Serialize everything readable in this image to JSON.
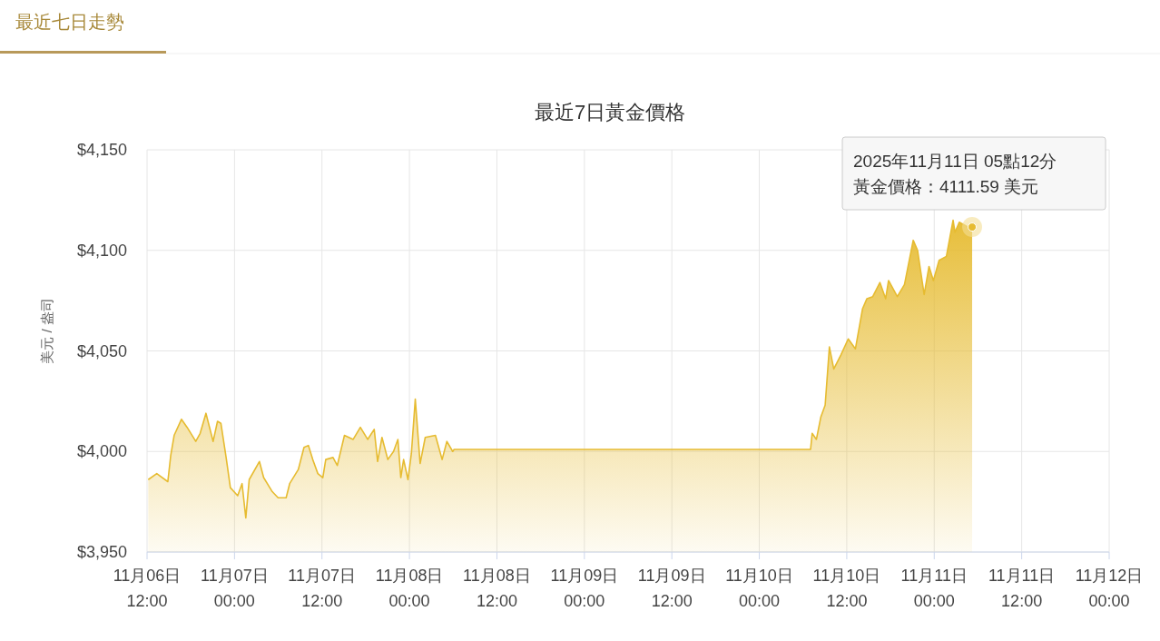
{
  "chart_data": {
    "type": "area",
    "title": "最近7日黃金價格",
    "ylabel": "美元 / 盎司",
    "annotations": [
      "最近七日走勢",
      "2025年11月11日 05點12分",
      "黃金價格：4111.59 美元"
    ],
    "x": [
      "2025-11-06T12:10",
      "2025-11-06T13:20",
      "2025-11-06T14:51",
      "2025-11-06T15:15",
      "2025-11-06T15:43",
      "2025-11-06T16:43",
      "2025-11-06T17:30",
      "2025-11-06T18:41",
      "2025-11-06T19:17",
      "2025-11-06T20:05",
      "2025-11-06T21:04",
      "2025-11-06T21:40",
      "2025-11-06T22:08",
      "2025-11-06T22:51",
      "2025-11-06T23:26",
      "2025-11-07T00:26",
      "2025-11-07T01:02",
      "2025-11-07T01:33",
      "2025-11-07T02:01",
      "2025-11-07T03:25",
      "2025-11-07T04:00",
      "2025-11-07T05:11",
      "2025-11-07T05:59",
      "2025-11-07T07:05",
      "2025-11-07T07:34",
      "2025-11-07T08:45",
      "2025-11-07T09:32",
      "2025-11-07T10:08",
      "2025-11-07T10:44",
      "2025-11-07T11:26",
      "2025-11-07T12:07",
      "2025-11-07T12:31",
      "2025-11-07T13:31",
      "2025-11-07T14:06",
      "2025-11-07T15:05",
      "2025-11-07T16:17",
      "2025-11-07T17:16",
      "2025-11-07T18:16",
      "2025-11-07T19:10",
      "2025-11-07T19:38",
      "2025-11-07T20:14",
      "2025-11-07T21:02",
      "2025-11-07T21:49",
      "2025-11-07T22:25",
      "2025-11-07T22:49",
      "2025-11-07T23:12",
      "2025-11-07T23:48",
      "2025-11-08T00:16",
      "2025-11-08T00:48",
      "2025-11-08T01:28",
      "2025-11-08T02:10",
      "2025-11-08T03:34",
      "2025-11-08T04:29",
      "2025-11-08T05:08",
      "2025-11-08T05:56",
      "2025-11-08T06:08",
      "2025-11-10T07:02",
      "2025-11-10T07:15",
      "2025-11-10T07:50",
      "2025-11-10T08:26",
      "2025-11-10T09:02",
      "2025-11-10T09:37",
      "2025-11-10T10:13",
      "2025-11-10T11:12",
      "2025-11-10T12:12",
      "2025-11-10T13:11",
      "2025-11-10T14:10",
      "2025-11-10T14:46",
      "2025-11-10T15:34",
      "2025-11-10T16:33",
      "2025-11-10T17:20",
      "2025-11-10T17:44",
      "2025-11-10T18:56",
      "2025-11-10T19:55",
      "2025-11-10T21:07",
      "2025-11-10T21:43",
      "2025-11-10T22:37",
      "2025-11-10T23:17",
      "2025-11-10T23:53",
      "2025-11-11T00:40",
      "2025-11-11T01:40",
      "2025-11-11T02:35",
      "2025-11-11T02:51",
      "2025-11-11T03:26",
      "2025-11-11T04:26",
      "2025-11-11T05:12"
    ],
    "series": [
      {
        "color": "#e6bb30",
        "values": [
          3986,
          3989,
          3985,
          3998,
          4008,
          4016,
          4012,
          4005,
          4009,
          4019,
          4005,
          4015,
          4014,
          3997,
          3982,
          3978,
          3984,
          3967,
          3986,
          3995,
          3987,
          3980,
          3977,
          3977,
          3984,
          3991,
          4002,
          4003,
          3996,
          3989,
          3987,
          3996,
          3997,
          3993,
          4008,
          4006,
          4012,
          4006,
          4011,
          3995,
          4007,
          3996,
          4000,
          4006,
          3987,
          3996,
          3986,
          3999,
          4026,
          3994,
          4007,
          4008,
          3996,
          4005,
          4000,
          4001,
          4001,
          4009,
          4006,
          4017,
          4023,
          4052,
          4041,
          4048,
          4056,
          4051,
          4071,
          4076,
          4077,
          4084,
          4076,
          4085,
          4077,
          4083,
          4105,
          4100,
          4078,
          4092,
          4085,
          4095,
          4097,
          4115,
          4109,
          4114,
          4112,
          4111.59
        ]
      }
    ],
    "xlim": [
      "2025-11-06T12:00",
      "2025-11-12T00:00"
    ],
    "xticks": [
      {
        "value": "2025-11-06T12:00",
        "label": "11月06日\n12:00"
      },
      {
        "value": "2025-11-07T00:00",
        "label": "11月07日\n00:00"
      },
      {
        "value": "2025-11-07T12:00",
        "label": "11月07日\n12:00"
      },
      {
        "value": "2025-11-08T00:00",
        "label": "11月08日\n00:00"
      },
      {
        "value": "2025-11-08T12:00",
        "label": "11月08日\n12:00"
      },
      {
        "value": "2025-11-09T00:00",
        "label": "11月09日\n00:00"
      },
      {
        "value": "2025-11-09T12:00",
        "label": "11月09日\n12:00"
      },
      {
        "value": "2025-11-10T00:00",
        "label": "11月10日\n00:00"
      },
      {
        "value": "2025-11-10T12:00",
        "label": "11月10日\n12:00"
      },
      {
        "value": "2025-11-11T00:00",
        "label": "11月11日\n00:00"
      },
      {
        "value": "2025-11-11T12:00",
        "label": "11月11日\n12:00"
      },
      {
        "value": "2025-11-12T00:00",
        "label": "11月12日\n00:00"
      }
    ],
    "ylim": [
      3950,
      4150
    ],
    "yticks": [
      {
        "value": 3950,
        "label": "$3,950"
      },
      {
        "value": 4000,
        "label": "$4,000"
      },
      {
        "value": 4050,
        "label": "$4,050"
      },
      {
        "value": 4100,
        "label": "$4,100"
      },
      {
        "value": 4150,
        "label": "$4,150"
      }
    ],
    "grid": true
  }
}
